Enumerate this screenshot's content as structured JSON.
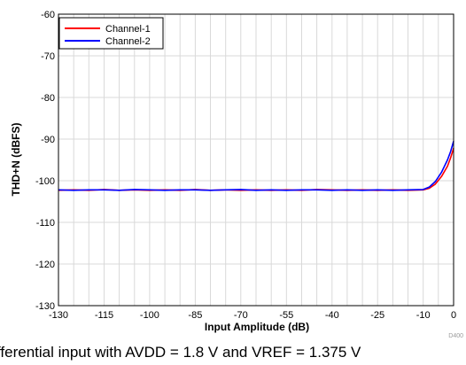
{
  "chart_data": {
    "type": "line",
    "xlabel": "Input Amplitude (dB)",
    "ylabel": "THD+N (dBFS)",
    "xlim": [
      -130,
      0
    ],
    "ylim": [
      -130,
      -60
    ],
    "xticks": [
      -130,
      -115,
      -100,
      -85,
      -70,
      -55,
      -40,
      -25,
      -10,
      0
    ],
    "yticks": [
      -60,
      -70,
      -80,
      -90,
      -100,
      -110,
      -120,
      -130
    ],
    "grid": true,
    "legend_position": "top-left",
    "series": [
      {
        "name": "Channel-1",
        "color": "#ff0000",
        "x": [
          -130,
          -125,
          -120,
          -115,
          -110,
          -105,
          -100,
          -95,
          -90,
          -85,
          -80,
          -75,
          -70,
          -65,
          -60,
          -55,
          -50,
          -45,
          -40,
          -35,
          -30,
          -25,
          -20,
          -15,
          -10,
          -8,
          -6,
          -4,
          -2,
          -1,
          0
        ],
        "y": [
          -102.3,
          -102.2,
          -102.3,
          -102.1,
          -102.3,
          -102.2,
          -102.3,
          -102.2,
          -102.3,
          -102.1,
          -102.3,
          -102.2,
          -102.3,
          -102.2,
          -102.3,
          -102.2,
          -102.3,
          -102.1,
          -102.2,
          -102.3,
          -102.2,
          -102.3,
          -102.2,
          -102.3,
          -102.2,
          -101.8,
          -100.8,
          -99,
          -96.5,
          -94.5,
          -92.2
        ]
      },
      {
        "name": "Channel-2",
        "color": "#0000ff",
        "x": [
          -130,
          -125,
          -120,
          -115,
          -110,
          -105,
          -100,
          -95,
          -90,
          -85,
          -80,
          -75,
          -70,
          -65,
          -60,
          -55,
          -50,
          -45,
          -40,
          -35,
          -30,
          -25,
          -20,
          -15,
          -10,
          -8,
          -6,
          -4,
          -2,
          -1,
          0
        ],
        "y": [
          -102.2,
          -102.3,
          -102.2,
          -102.2,
          -102.3,
          -102.1,
          -102.2,
          -102.3,
          -102.2,
          -102.2,
          -102.3,
          -102.2,
          -102.1,
          -102.3,
          -102.2,
          -102.3,
          -102.2,
          -102.2,
          -102.3,
          -102.2,
          -102.3,
          -102.2,
          -102.3,
          -102.2,
          -102.1,
          -101.5,
          -100.2,
          -98,
          -95,
          -93,
          -90.5
        ]
      }
    ]
  },
  "watermark": "D400",
  "caption": "fferential input with AVDD = 1.8 V and VREF = 1.375 V"
}
